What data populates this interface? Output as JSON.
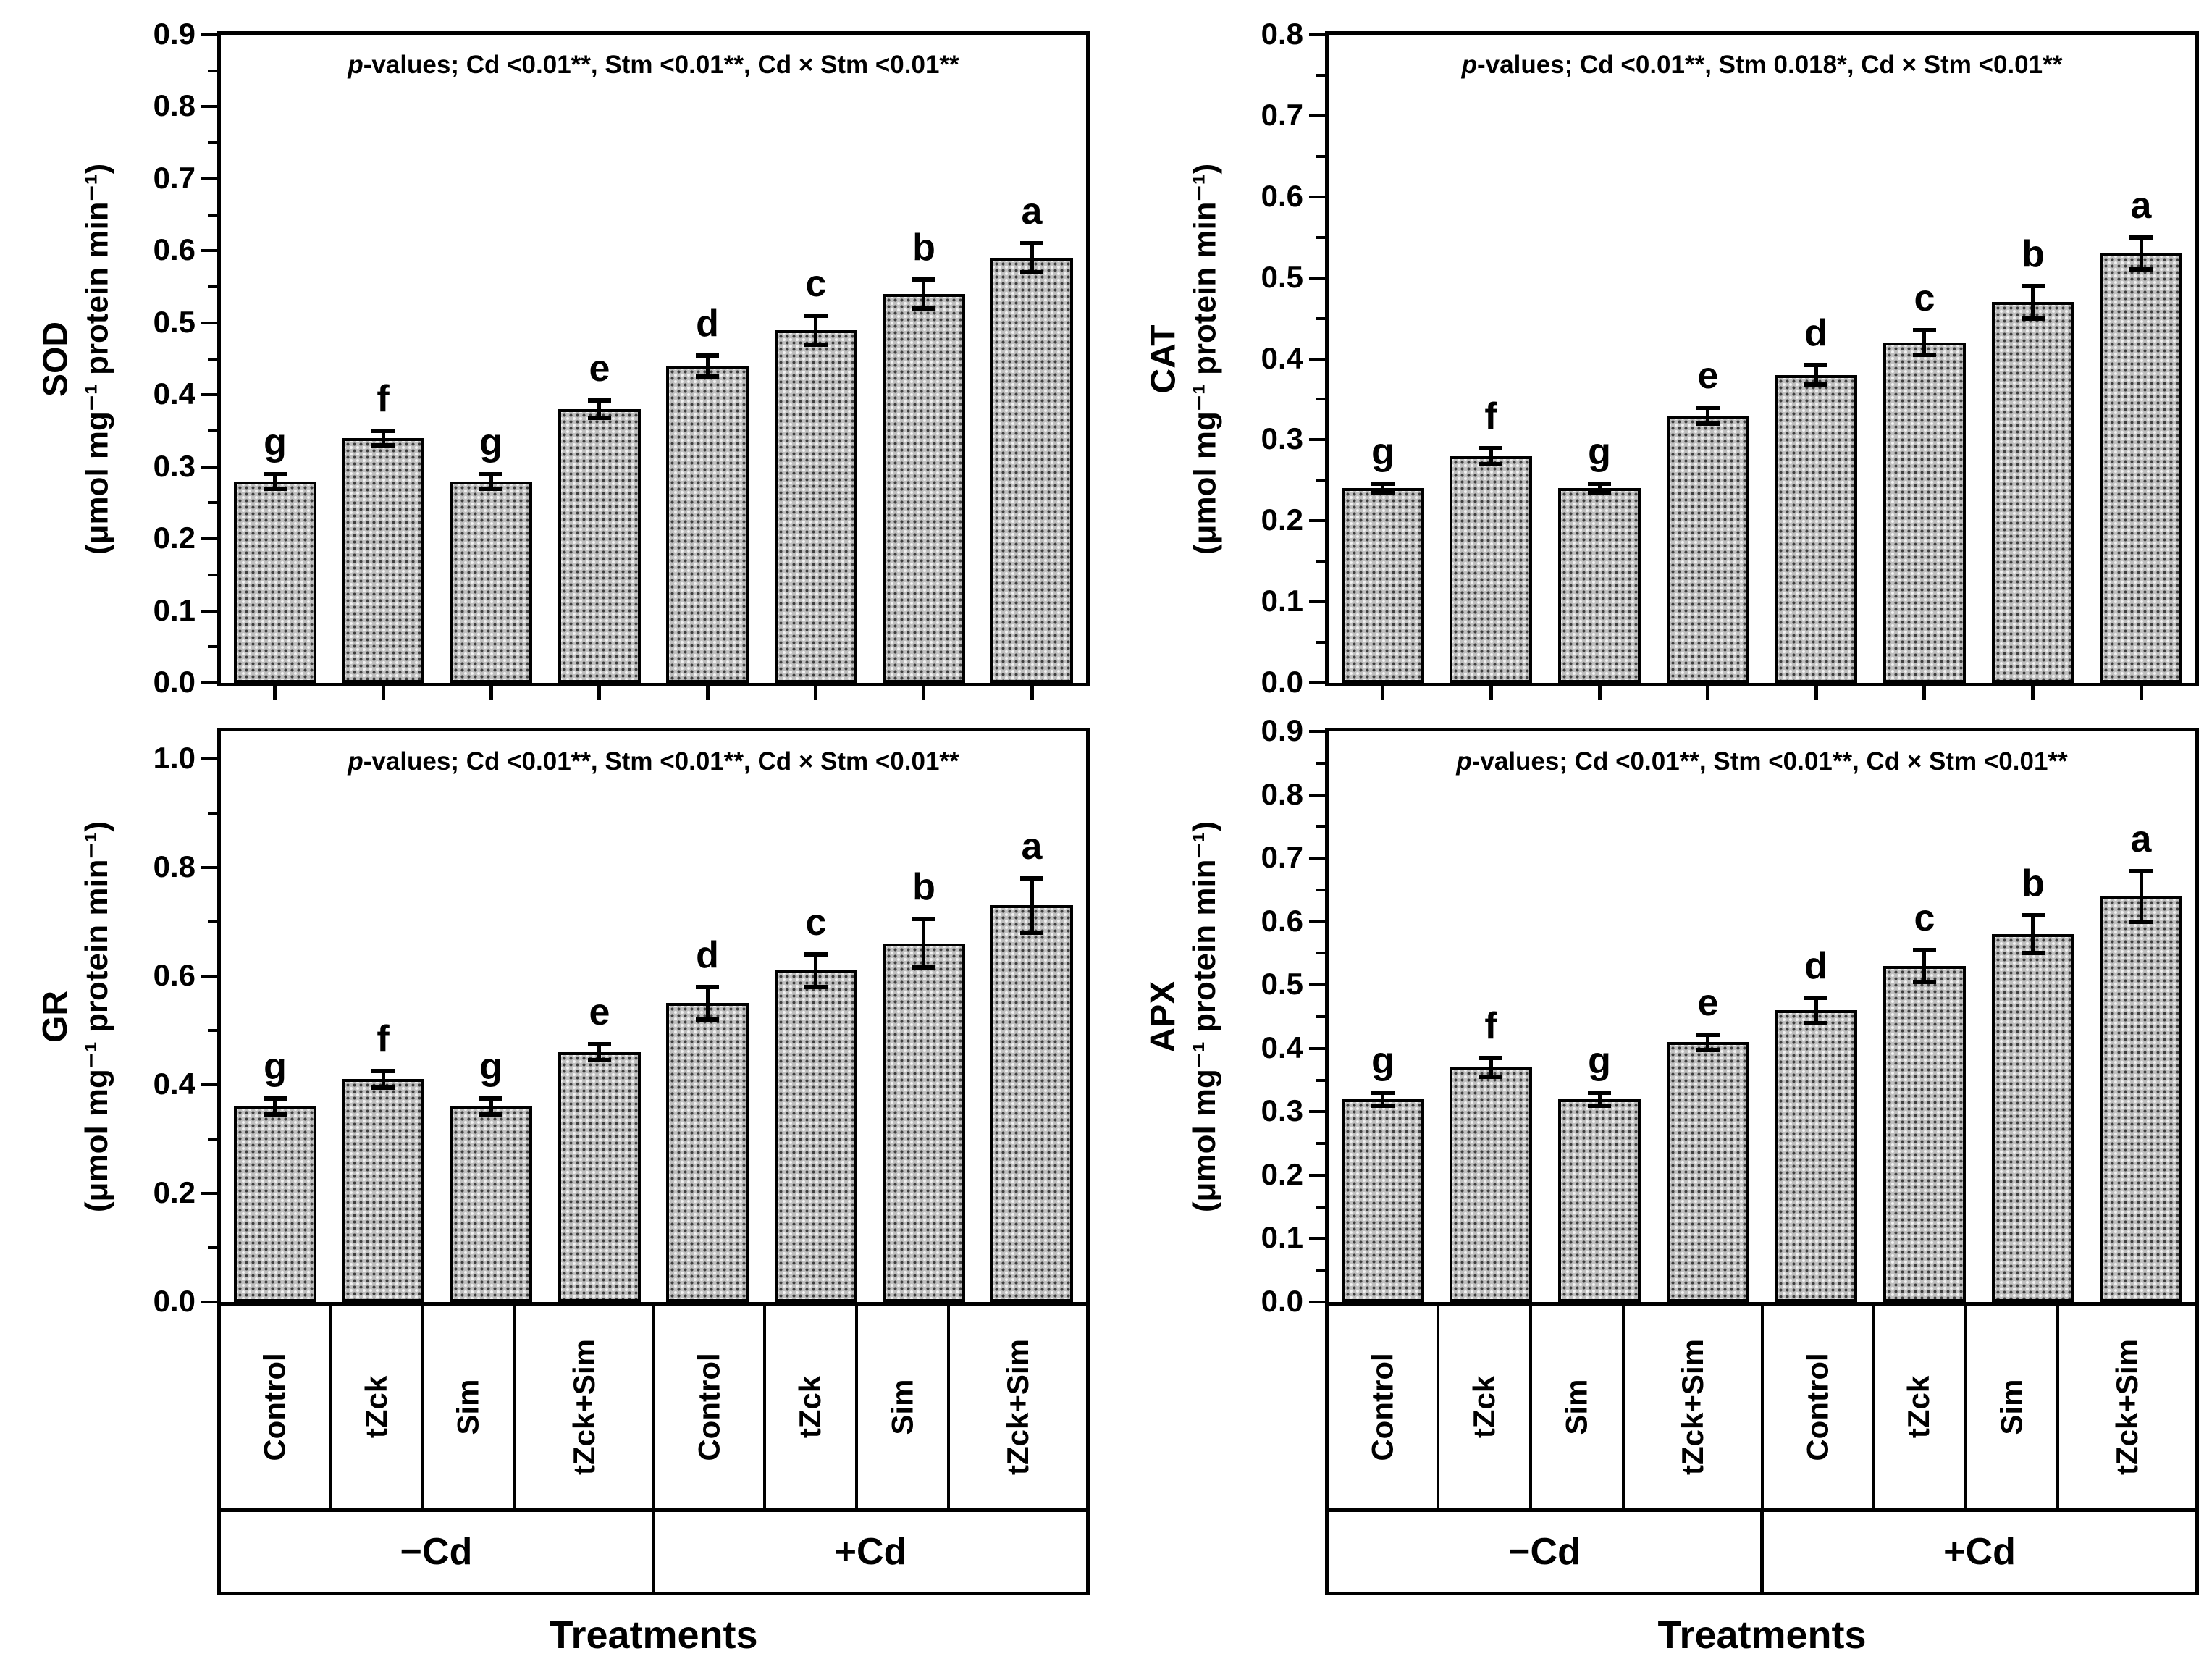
{
  "figure": {
    "x_axis_title": "Treatments",
    "group_labels": [
      "−Cd",
      "+Cd"
    ],
    "treatments": [
      "Control",
      "tZck",
      "Sim",
      "tZck+Sim",
      "Control",
      "tZck",
      "Sim",
      "tZck+Sim"
    ],
    "ink_color": "#000000",
    "bar_fill_color": "#bfbfbf"
  },
  "chart_data": [
    {
      "type": "bar",
      "panel": "SOD",
      "ylabel_line1": "SOD",
      "ylabel_line2": "(μmol mg⁻¹ protein min⁻¹)",
      "p_label_italic": "p",
      "p_label_text": "-values; Cd <0.01**, Stm <0.01**, Cd × Stm <0.01**",
      "categories": [
        "Control",
        "tZck",
        "Sim",
        "tZck+Sim",
        "Control",
        "tZck",
        "Sim",
        "tZck+Sim"
      ],
      "values": [
        0.28,
        0.34,
        0.28,
        0.38,
        0.44,
        0.49,
        0.54,
        0.59
      ],
      "errors": [
        0.01,
        0.01,
        0.01,
        0.012,
        0.015,
        0.02,
        0.02,
        0.02
      ],
      "letters": [
        "g",
        "f",
        "g",
        "e",
        "d",
        "c",
        "b",
        "a"
      ],
      "ylim": [
        0,
        0.9
      ],
      "label_step": 0.1,
      "minor_step": 0.05,
      "decimals": 1,
      "grid": false
    },
    {
      "type": "bar",
      "panel": "CAT",
      "ylabel_line1": "CAT",
      "ylabel_line2": "(μmol mg⁻¹ protein min⁻¹)",
      "p_label_italic": "p",
      "p_label_text": "-values; Cd <0.01**, Stm 0.018*, Cd × Stm <0.01**",
      "categories": [
        "Control",
        "tZck",
        "Sim",
        "tZck+Sim",
        "Control",
        "tZck",
        "Sim",
        "tZck+Sim"
      ],
      "values": [
        0.24,
        0.28,
        0.24,
        0.33,
        0.38,
        0.42,
        0.47,
        0.53
      ],
      "errors": [
        0.006,
        0.01,
        0.006,
        0.01,
        0.012,
        0.015,
        0.02,
        0.02
      ],
      "letters": [
        "g",
        "f",
        "g",
        "e",
        "d",
        "c",
        "b",
        "a"
      ],
      "ylim": [
        0,
        0.8
      ],
      "label_step": 0.1,
      "minor_step": 0.05,
      "decimals": 1,
      "grid": false
    },
    {
      "type": "bar",
      "panel": "GR",
      "ylabel_line1": "GR",
      "ylabel_line2": "(μmol mg⁻¹ protein min⁻¹)",
      "p_label_italic": "p",
      "p_label_text": "-values; Cd <0.01**, Stm <0.01**, Cd × Stm <0.01**",
      "categories": [
        "Control",
        "tZck",
        "Sim",
        "tZck+Sim",
        "Control",
        "tZck",
        "Sim",
        "tZck+Sim"
      ],
      "values": [
        0.36,
        0.41,
        0.36,
        0.46,
        0.55,
        0.61,
        0.66,
        0.73
      ],
      "errors": [
        0.015,
        0.015,
        0.015,
        0.015,
        0.03,
        0.03,
        0.045,
        0.05
      ],
      "letters": [
        "g",
        "f",
        "g",
        "e",
        "d",
        "c",
        "b",
        "a"
      ],
      "ylim": [
        0,
        1.05
      ],
      "label_step": 0.2,
      "minor_step": 0.1,
      "decimals": 1,
      "grid": false
    },
    {
      "type": "bar",
      "panel": "APX",
      "ylabel_line1": "APX",
      "ylabel_line2": "(μmol mg⁻¹ protein min⁻¹)",
      "p_label_italic": "p",
      "p_label_text": "-values; Cd <0.01**, Stm <0.01**, Cd × Stm <0.01**",
      "categories": [
        "Control",
        "tZck",
        "Sim",
        "tZck+Sim",
        "Control",
        "tZck",
        "Sim",
        "tZck+Sim"
      ],
      "values": [
        0.32,
        0.37,
        0.32,
        0.41,
        0.46,
        0.53,
        0.58,
        0.64
      ],
      "errors": [
        0.01,
        0.015,
        0.01,
        0.012,
        0.02,
        0.025,
        0.03,
        0.04
      ],
      "letters": [
        "g",
        "f",
        "g",
        "e",
        "d",
        "c",
        "b",
        "a"
      ],
      "ylim": [
        0,
        0.9
      ],
      "label_step": 0.1,
      "minor_step": 0.05,
      "decimals": 1,
      "grid": false
    }
  ]
}
